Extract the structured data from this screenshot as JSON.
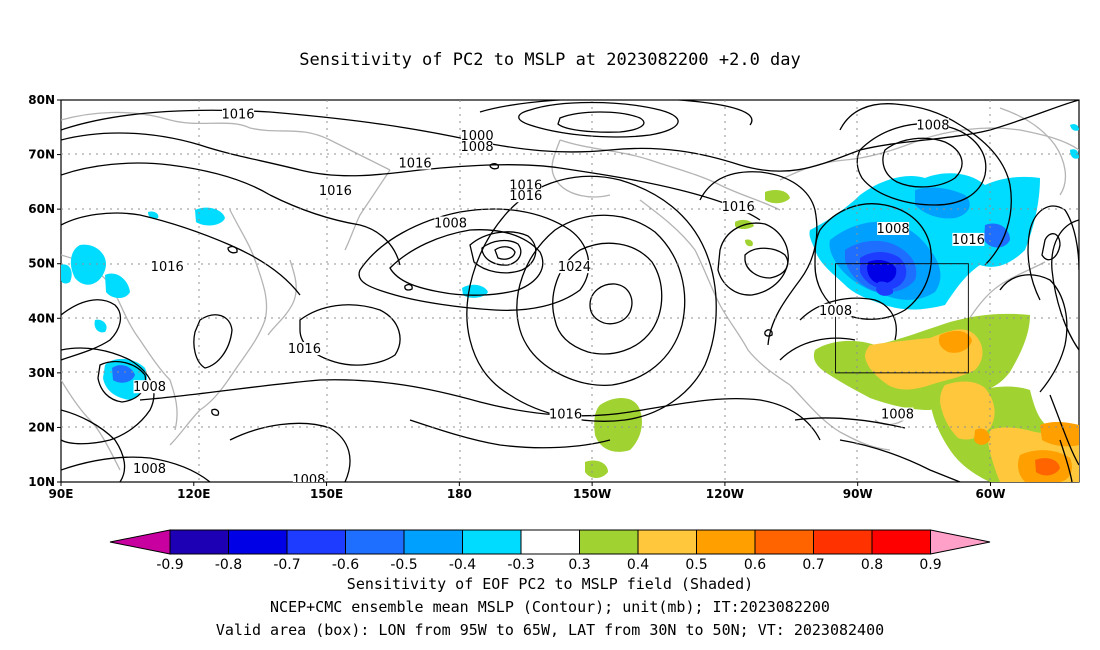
{
  "title": "Sensitivity of PC2 to MSLP at 2023082200 +2.0 day",
  "lat_labels": [
    "80N",
    "70N",
    "60N",
    "50N",
    "40N",
    "30N",
    "20N",
    "10N"
  ],
  "lon_labels": [
    "90E",
    "120E",
    "150E",
    "180",
    "150W",
    "120W",
    "90W",
    "60W"
  ],
  "contour_labels": [
    {
      "text": "1016",
      "lon": 130,
      "lat": 77
    },
    {
      "text": "1000",
      "lon": 184,
      "lat": 73
    },
    {
      "text": "1008",
      "lon": 184,
      "lat": 71
    },
    {
      "text": "1016",
      "lon": 170,
      "lat": 68
    },
    {
      "text": "1016",
      "lon": 152,
      "lat": 63
    },
    {
      "text": "1016",
      "lon": 195,
      "lat": 64
    },
    {
      "text": "1016",
      "lon": 195,
      "lat": 62
    },
    {
      "text": "1008",
      "lon": 178,
      "lat": 57
    },
    {
      "text": "1016",
      "lon": 114,
      "lat": 49
    },
    {
      "text": "1024",
      "lon": 206,
      "lat": 49
    },
    {
      "text": "1016",
      "lon": 145,
      "lat": 34
    },
    {
      "text": "1008",
      "lon": 110,
      "lat": 27
    },
    {
      "text": "1016",
      "lon": 204,
      "lat": 22
    },
    {
      "text": "1008",
      "lon": 110,
      "lat": 12
    },
    {
      "text": "1008",
      "lon": 146,
      "lat": 10
    },
    {
      "text": "1016",
      "lon": 243,
      "lat": 60
    },
    {
      "text": "1008",
      "lon": 287,
      "lat": 75
    },
    {
      "text": "1008",
      "lon": 278,
      "lat": 56
    },
    {
      "text": "1016",
      "lon": 295,
      "lat": 54
    },
    {
      "text": "1008",
      "lon": 265,
      "lat": 41
    },
    {
      "text": "1008",
      "lon": 279,
      "lat": 22
    }
  ],
  "valid_box": {
    "lon_min": 265,
    "lon_max": 295,
    "lat_min": 30,
    "lat_max": 50
  },
  "colorbar": {
    "labels": [
      "-0.9",
      "-0.8",
      "-0.7",
      "-0.6",
      "-0.5",
      "-0.4",
      "-0.3",
      "0.3",
      "0.4",
      "0.5",
      "0.6",
      "0.7",
      "0.8",
      "0.9"
    ],
    "colors": [
      "#1e00b4",
      "#0000e6",
      "#1e3cff",
      "#1e6eff",
      "#00a0ff",
      "#00dcff",
      "#ffffff",
      "#a0d232",
      "#ffc83c",
      "#ffa000",
      "#ff6400",
      "#ff3200",
      "#ff0000"
    ],
    "left_tip": "#c800a0",
    "right_tip": "#ffa0c8"
  },
  "captions": [
    "Sensitivity of EOF PC2 to MSLP field (Shaded)",
    "NCEP+CMC ensemble mean MSLP (Contour); unit(mb); IT:2023082200",
    "Valid area (box): LON from 95W to 65W, LAT from 30N to 50N; VT: 2023082400"
  ]
}
